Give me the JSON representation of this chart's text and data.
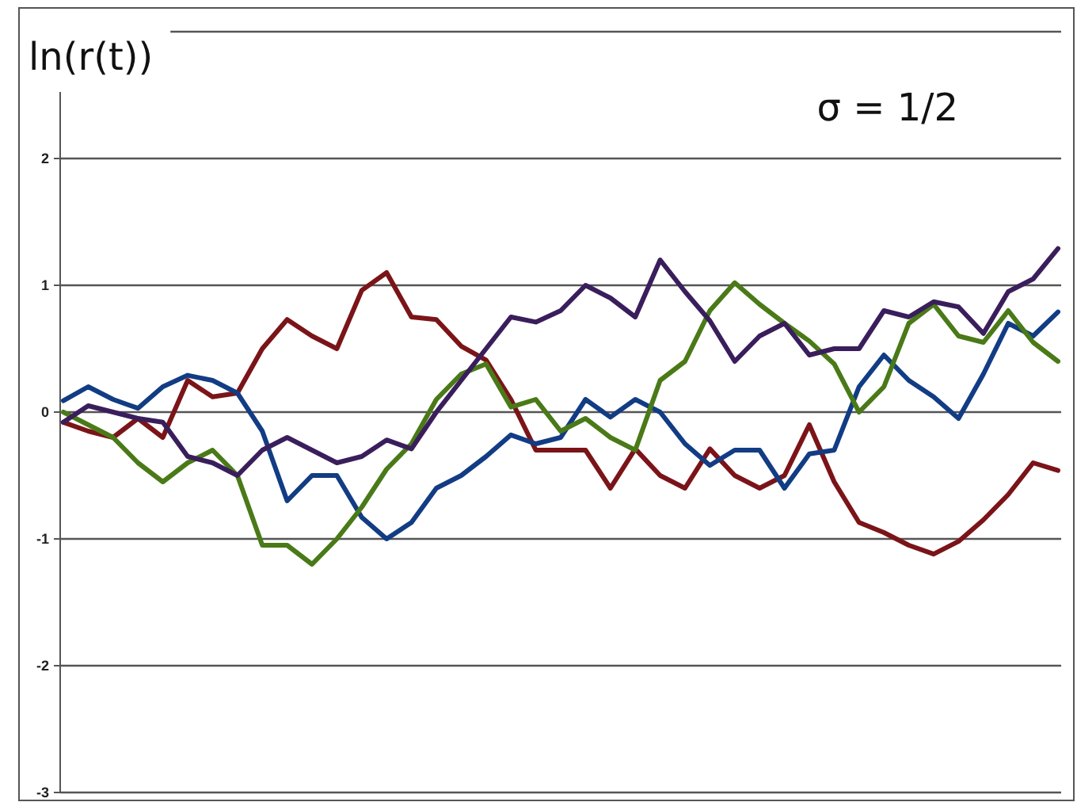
{
  "chart_data": {
    "type": "line",
    "ylabel": "ln(r(t))",
    "annotations": [
      "σ = 1/2"
    ],
    "categories": [
      null,
      null,
      null,
      null,
      null,
      null,
      null,
      null,
      null,
      null,
      null,
      null,
      null,
      null,
      null,
      null,
      null,
      null,
      null,
      null,
      null,
      null,
      null,
      null,
      null,
      null,
      null,
      null,
      null,
      null,
      null,
      null,
      null,
      null,
      null,
      null,
      null,
      null,
      null,
      null,
      null
    ],
    "ylim": [
      -3,
      3
    ],
    "yticks": [
      -3,
      -2,
      -1,
      0,
      1,
      2,
      {
        "value": 3,
        "label": null
      }
    ],
    "grid": "y",
    "tick_labels": "y",
    "marker": "none",
    "line_style": "solid",
    "series": [
      {
        "color": "#7b1418",
        "values": [
          -0.08,
          -0.15,
          -0.2,
          -0.05,
          -0.2,
          0.25,
          0.12,
          0.15,
          0.5,
          0.73,
          0.6,
          0.5,
          0.96,
          1.1,
          0.75,
          0.73,
          0.52,
          0.41,
          0.1,
          -0.3,
          -0.3,
          -0.3,
          -0.6,
          -0.29,
          -0.5,
          -0.6,
          -0.29,
          -0.5,
          -0.6,
          -0.5,
          -0.1,
          -0.55,
          -0.87,
          -0.95,
          -1.05,
          -1.12,
          -1.02,
          -0.85,
          -0.65,
          -0.4,
          -0.46
        ]
      },
      {
        "color": "#123c84",
        "values": [
          0.09,
          0.2,
          0.1,
          0.03,
          0.2,
          0.29,
          0.25,
          0.15,
          -0.15,
          -0.7,
          -0.5,
          -0.5,
          -0.83,
          -1.0,
          -0.87,
          -0.6,
          -0.5,
          -0.35,
          -0.18,
          -0.25,
          -0.2,
          0.1,
          -0.04,
          0.1,
          0.0,
          -0.25,
          -0.42,
          -0.3,
          -0.3,
          -0.6,
          -0.33,
          -0.3,
          0.2,
          0.45,
          0.25,
          0.12,
          -0.05,
          0.3,
          0.7,
          0.6,
          0.79
        ]
      },
      {
        "color": "#4a7a18",
        "values": [
          0,
          -0.1,
          -0.2,
          -0.4,
          -0.55,
          -0.4,
          -0.3,
          -0.5,
          -1.05,
          -1.05,
          -1.2,
          -1.0,
          -0.75,
          -0.45,
          -0.25,
          0.1,
          0.3,
          0.38,
          0.04,
          0.1,
          -0.15,
          -0.05,
          -0.2,
          -0.3,
          0.25,
          0.4,
          0.8,
          1.02,
          0.85,
          0.7,
          0.56,
          0.38,
          0.0,
          0.2,
          0.7,
          0.85,
          0.6,
          0.55,
          0.8,
          0.55,
          0.4
        ]
      },
      {
        "color": "#3a1e5c",
        "values": [
          -0.08,
          0.05,
          0.0,
          -0.05,
          -0.08,
          -0.35,
          -0.4,
          -0.5,
          -0.3,
          -0.2,
          -0.3,
          -0.4,
          -0.35,
          -0.22,
          -0.29,
          0.0,
          0.25,
          0.5,
          0.75,
          0.71,
          0.8,
          1.0,
          0.9,
          0.75,
          1.2,
          0.95,
          0.72,
          0.4,
          0.6,
          0.7,
          0.45,
          0.5,
          0.5,
          0.8,
          0.75,
          0.87,
          0.83,
          0.62,
          0.95,
          1.05,
          1.29
        ]
      }
    ]
  }
}
